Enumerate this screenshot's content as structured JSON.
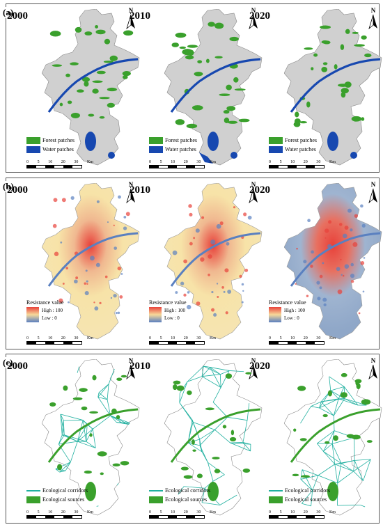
{
  "panels": [
    {
      "label": "(a)",
      "maps": [
        {
          "year": "2000"
        },
        {
          "year": "2010"
        },
        {
          "year": "2020"
        }
      ],
      "legend": {
        "items": [
          {
            "label": "Forest patches",
            "color": "#3aa02c"
          },
          {
            "label": "Water patches",
            "color": "#1748b0"
          }
        ]
      }
    },
    {
      "label": "(b)",
      "maps": [
        {
          "year": "2000"
        },
        {
          "year": "2010"
        },
        {
          "year": "2020"
        }
      ],
      "legend": {
        "title": "Resistance value",
        "high": "High : 100",
        "low": "Low : 0"
      }
    },
    {
      "label": "(c)",
      "maps": [
        {
          "year": "2000"
        },
        {
          "year": "2010"
        },
        {
          "year": "2020"
        }
      ],
      "legend": {
        "items": [
          {
            "label": "Ecological corridors",
            "color": "#20b0a0"
          },
          {
            "label": "Ecological sources",
            "color": "#3aa02c"
          }
        ]
      }
    }
  ],
  "north_label": "N",
  "scale": {
    "ticks": [
      "0",
      "5",
      "10",
      "20",
      "30"
    ],
    "unit": "Km"
  },
  "colors": {
    "land": "#d0d0d0",
    "forest": "#3aa02c",
    "water": "#1748b0",
    "corridor": "#20b0a0",
    "high": "#e8413a",
    "low": "#5a80c0",
    "mid": "#f7e3a8"
  }
}
